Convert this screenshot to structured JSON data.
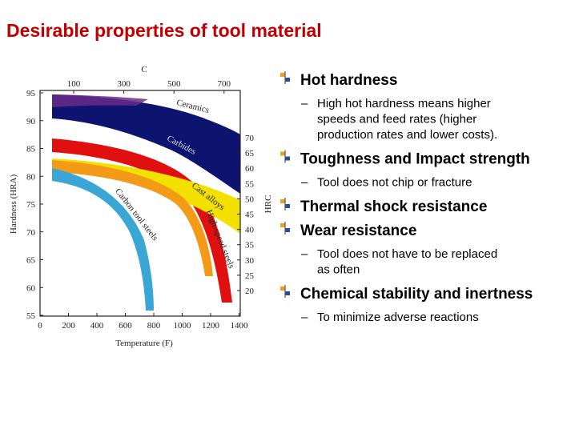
{
  "header": {
    "title": "Desirable properties of tool material"
  },
  "figure": {
    "top_axis_label": "C",
    "top_ticks": [
      100,
      300,
      500,
      700
    ],
    "y_axis_label": "Hardness (HRA)",
    "y_ticks": [
      95,
      90,
      85,
      80,
      75,
      70,
      65,
      60,
      55
    ],
    "y2_axis_label": "HRC",
    "y2_ticks": [
      70,
      65,
      60,
      55,
      50,
      45,
      40,
      35,
      30,
      25,
      20
    ],
    "x_axis_label": "Temperature (F)",
    "x_ticks": [
      0,
      200,
      400,
      600,
      800,
      1000,
      1200,
      1400
    ],
    "band_labels": [
      "Ceramics",
      "Carbides",
      "Cast alloys",
      "High-speed steels",
      "Carbon tool steels"
    ]
  },
  "bullets": [
    {
      "text": "Hot hardness",
      "sub": {
        "marker": "–",
        "lines": [
          "High hot hardness means higher",
          "speeds and feed rates (higher",
          "production rates and lower costs)."
        ]
      }
    },
    {
      "text": "Toughness and Impact strength",
      "sub": {
        "marker": "–",
        "lines": [
          "Tool does not chip or fracture"
        ]
      }
    },
    {
      "text": "Thermal shock resistance"
    },
    {
      "text": "Wear resistance",
      "sub": {
        "marker": "–",
        "lines": [
          "Tool does not have to be replaced",
          "as often"
        ]
      }
    },
    {
      "text": "Chemical stability and inertness",
      "sub": {
        "marker": "–",
        "lines": [
          "To minimize adverse reactions"
        ]
      }
    }
  ]
}
